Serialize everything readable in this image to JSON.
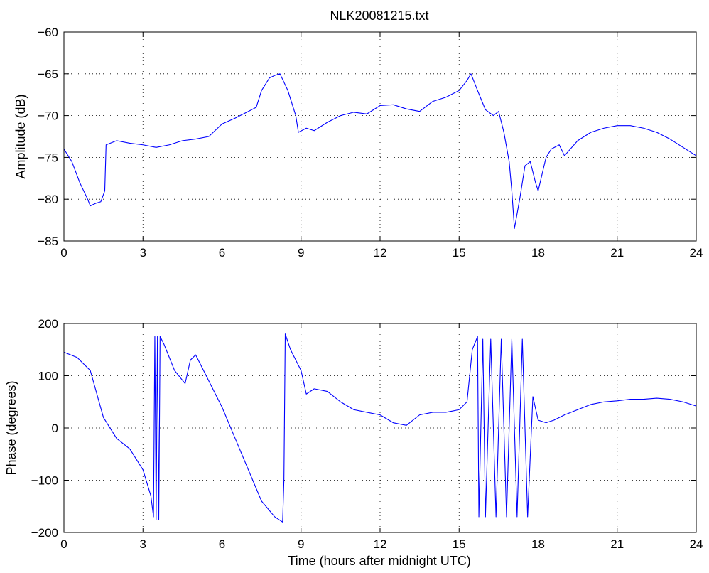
{
  "chart_data": [
    {
      "type": "line",
      "title": "NLK20081215.txt",
      "xlabel": "",
      "ylabel": "Amplitude (dB)",
      "xlim": [
        0,
        24
      ],
      "ylim": [
        -85,
        -60
      ],
      "xticks": [
        "0",
        "3",
        "6",
        "9",
        "12",
        "15",
        "18",
        "21",
        "24"
      ],
      "yticks": [
        "-60",
        "-65",
        "-70",
        "-75",
        "-80",
        "-85"
      ],
      "grid": true,
      "color": "#0000ff",
      "series": [
        {
          "x": [
            0,
            0.3,
            0.6,
            0.9,
            1.0,
            1.2,
            1.4,
            1.55,
            1.6,
            2.0,
            2.5,
            3.0,
            3.5,
            4.0,
            4.5,
            5.0,
            5.5,
            6.0,
            6.5,
            7.0,
            7.3,
            7.5,
            7.8,
            8.0,
            8.2,
            8.5,
            8.8,
            8.9,
            9.2,
            9.5,
            10.0,
            10.5,
            11.0,
            11.5,
            12.0,
            12.5,
            13.0,
            13.5,
            14.0,
            14.5,
            15.0,
            15.3,
            15.45,
            15.7,
            16.0,
            16.3,
            16.5,
            16.7,
            16.9,
            17.0,
            17.1,
            17.3,
            17.5,
            17.7,
            17.9,
            18.0,
            18.3,
            18.5,
            18.8,
            19.0,
            19.5,
            20.0,
            20.5,
            21.0,
            21.5,
            22.0,
            22.5,
            23.0,
            23.5,
            24.0
          ],
          "values": [
            -74,
            -75.5,
            -78,
            -80,
            -80.8,
            -80.5,
            -80.3,
            -79,
            -73.5,
            -73,
            -73.3,
            -73.5,
            -73.8,
            -73.5,
            -73,
            -72.8,
            -72.5,
            -71,
            -70.3,
            -69.5,
            -69,
            -67,
            -65.5,
            -65.2,
            -65,
            -67,
            -70,
            -72,
            -71.5,
            -71.8,
            -70.8,
            -70,
            -69.6,
            -69.8,
            -68.8,
            -68.7,
            -69.2,
            -69.5,
            -68.3,
            -67.8,
            -67,
            -65.8,
            -65,
            -67,
            -69.3,
            -70,
            -69.5,
            -72,
            -75.5,
            -79,
            -83.5,
            -80,
            -76,
            -75.5,
            -78,
            -79,
            -75,
            -74,
            -73.5,
            -74.8,
            -73,
            -72,
            -71.5,
            -71.2,
            -71.2,
            -71.5,
            -72,
            -72.8,
            -73.8,
            -74.8
          ]
        }
      ]
    },
    {
      "type": "line",
      "title": "",
      "xlabel": "Time (hours after midnight UTC)",
      "ylabel": "Phase (degrees)",
      "xlim": [
        0,
        24
      ],
      "ylim": [
        -200,
        200
      ],
      "xticks": [
        "0",
        "3",
        "6",
        "9",
        "12",
        "15",
        "18",
        "21",
        "24"
      ],
      "yticks": [
        "200",
        "100",
        "0",
        "-100",
        "-200"
      ],
      "grid": true,
      "color": "#0000ff",
      "series": [
        {
          "x": [
            0,
            0.5,
            1.0,
            1.5,
            2.0,
            2.5,
            3.0,
            3.3,
            3.4,
            3.45,
            3.5,
            3.55,
            3.6,
            3.65,
            3.7,
            3.8,
            4.2,
            4.6,
            4.8,
            5.0,
            5.2,
            5.6,
            6.0,
            6.5,
            7.0,
            7.5,
            8.0,
            8.3,
            8.35,
            8.4,
            8.6,
            9.0,
            9.2,
            9.5,
            10.0,
            10.5,
            11.0,
            11.5,
            12.0,
            12.5,
            13.0,
            13.5,
            14.0,
            14.5,
            15.0,
            15.3,
            15.5,
            15.7,
            15.75,
            15.9,
            16.0,
            16.2,
            16.4,
            16.6,
            16.8,
            17.0,
            17.2,
            17.4,
            17.6,
            17.8,
            18.0,
            18.3,
            18.6,
            19.0,
            19.5,
            20.0,
            20.5,
            21.0,
            21.5,
            22.0,
            22.5,
            23.0,
            23.5,
            24.0
          ],
          "values": [
            145,
            135,
            110,
            20,
            -20,
            -40,
            -80,
            -130,
            -170,
            175,
            -175,
            175,
            -175,
            175,
            170,
            160,
            110,
            85,
            130,
            140,
            120,
            80,
            40,
            -20,
            -80,
            -140,
            -170,
            -180,
            -100,
            180,
            150,
            110,
            65,
            75,
            70,
            50,
            35,
            30,
            25,
            10,
            5,
            25,
            30,
            30,
            35,
            50,
            150,
            175,
            -170,
            170,
            -170,
            170,
            -170,
            170,
            -170,
            170,
            -170,
            170,
            -170,
            60,
            15,
            10,
            15,
            25,
            35,
            45,
            50,
            52,
            55,
            55,
            57,
            55,
            50,
            42
          ]
        }
      ]
    }
  ]
}
